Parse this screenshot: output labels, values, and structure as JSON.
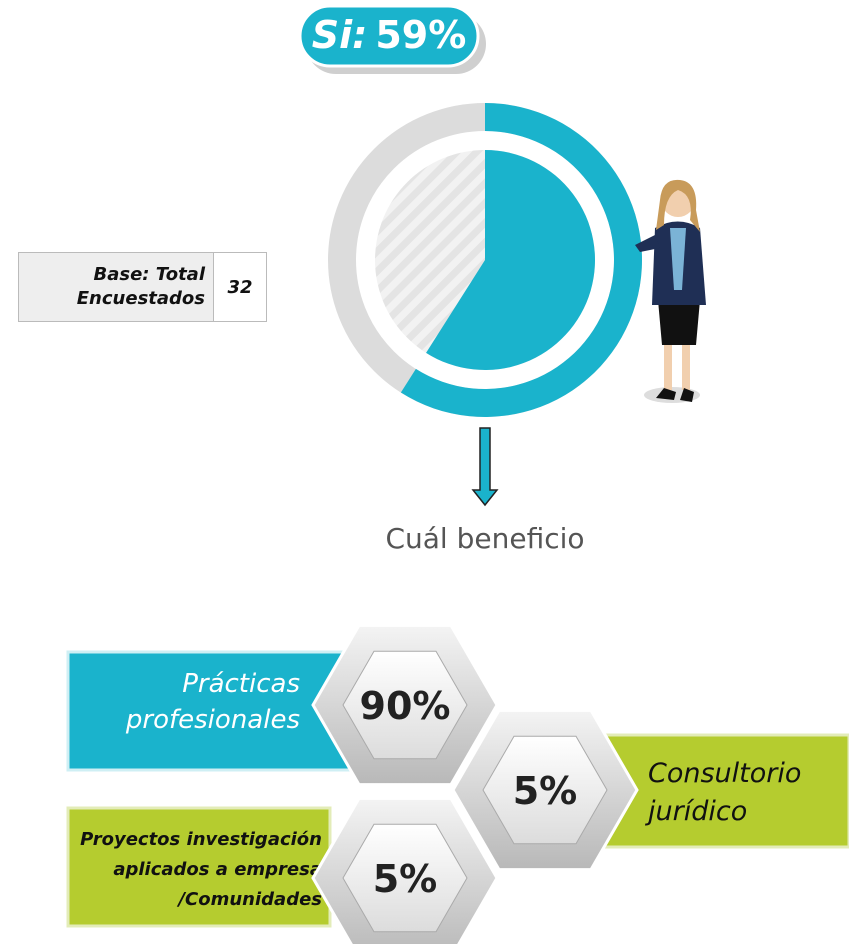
{
  "donut": {
    "label": "Si:",
    "value": 59,
    "value_label": "59%"
  },
  "base": {
    "label": "Base: Total Encuestados",
    "value": 32
  },
  "arrow_label": "Cuál beneficio",
  "benefits": [
    {
      "name": "Prácticas profesionales",
      "value": 90,
      "value_label": "90%"
    },
    {
      "name": "Consultorio jurídico",
      "value": 5,
      "value_label": "5%"
    },
    {
      "lines": [
        "Proyectos investigación",
        "aplicados a empresa",
        "/Comunidades"
      ],
      "value": 5,
      "value_label": "5%"
    }
  ]
}
